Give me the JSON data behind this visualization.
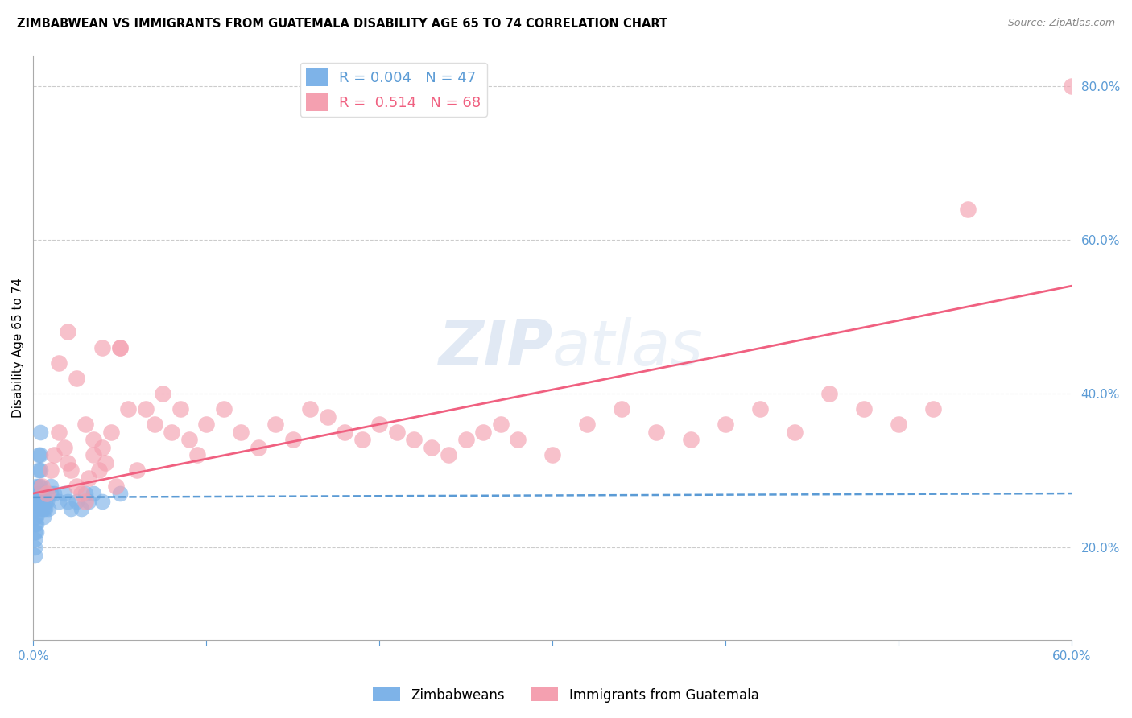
{
  "title": "ZIMBABWEAN VS IMMIGRANTS FROM GUATEMALA DISABILITY AGE 65 TO 74 CORRELATION CHART",
  "source": "Source: ZipAtlas.com",
  "ylabel": "Disability Age 65 to 74",
  "xlim": [
    0.0,
    0.6
  ],
  "ylim": [
    0.08,
    0.84
  ],
  "xticks": [
    0.0,
    0.1,
    0.2,
    0.3,
    0.4,
    0.5,
    0.6
  ],
  "xticklabels": [
    "0.0%",
    "",
    "",
    "",
    "",
    "",
    "60.0%"
  ],
  "yticks_right": [
    0.2,
    0.4,
    0.6,
    0.8
  ],
  "ytick_right_labels": [
    "20.0%",
    "40.0%",
    "60.0%",
    "80.0%"
  ],
  "blue_R": 0.004,
  "blue_N": 47,
  "pink_R": 0.514,
  "pink_N": 68,
  "legend_label_blue": "Zimbabweans",
  "legend_label_pink": "Immigrants from Guatemala",
  "blue_color": "#7EB3E8",
  "pink_color": "#F4A0B0",
  "blue_line_color": "#5B9BD5",
  "pink_line_color": "#F06080",
  "blue_x": [
    0.001,
    0.001,
    0.001,
    0.001,
    0.001,
    0.001,
    0.001,
    0.001,
    0.002,
    0.002,
    0.002,
    0.002,
    0.002,
    0.002,
    0.002,
    0.003,
    0.003,
    0.003,
    0.003,
    0.003,
    0.004,
    0.004,
    0.004,
    0.004,
    0.005,
    0.005,
    0.005,
    0.006,
    0.006,
    0.007,
    0.007,
    0.008,
    0.009,
    0.01,
    0.01,
    0.012,
    0.015,
    0.018,
    0.02,
    0.022,
    0.025,
    0.028,
    0.03,
    0.032,
    0.035,
    0.04,
    0.05
  ],
  "blue_y": [
    0.26,
    0.25,
    0.24,
    0.23,
    0.22,
    0.21,
    0.2,
    0.19,
    0.28,
    0.27,
    0.26,
    0.25,
    0.24,
    0.23,
    0.22,
    0.32,
    0.3,
    0.28,
    0.27,
    0.26,
    0.35,
    0.32,
    0.3,
    0.28,
    0.27,
    0.26,
    0.25,
    0.25,
    0.24,
    0.26,
    0.25,
    0.26,
    0.25,
    0.28,
    0.27,
    0.27,
    0.26,
    0.27,
    0.26,
    0.25,
    0.26,
    0.25,
    0.27,
    0.26,
    0.27,
    0.26,
    0.27
  ],
  "pink_x": [
    0.005,
    0.008,
    0.01,
    0.012,
    0.015,
    0.018,
    0.02,
    0.022,
    0.025,
    0.028,
    0.03,
    0.032,
    0.035,
    0.038,
    0.04,
    0.042,
    0.045,
    0.048,
    0.05,
    0.055,
    0.06,
    0.065,
    0.07,
    0.075,
    0.08,
    0.085,
    0.09,
    0.095,
    0.1,
    0.11,
    0.12,
    0.13,
    0.14,
    0.15,
    0.16,
    0.17,
    0.18,
    0.19,
    0.2,
    0.21,
    0.22,
    0.23,
    0.24,
    0.25,
    0.26,
    0.27,
    0.28,
    0.3,
    0.32,
    0.34,
    0.36,
    0.38,
    0.4,
    0.42,
    0.44,
    0.46,
    0.48,
    0.5,
    0.52,
    0.54,
    0.015,
    0.02,
    0.025,
    0.03,
    0.035,
    0.04,
    0.05,
    0.6
  ],
  "pink_y": [
    0.28,
    0.27,
    0.3,
    0.32,
    0.35,
    0.33,
    0.31,
    0.3,
    0.28,
    0.27,
    0.26,
    0.29,
    0.32,
    0.3,
    0.33,
    0.31,
    0.35,
    0.28,
    0.46,
    0.38,
    0.3,
    0.38,
    0.36,
    0.4,
    0.35,
    0.38,
    0.34,
    0.32,
    0.36,
    0.38,
    0.35,
    0.33,
    0.36,
    0.34,
    0.38,
    0.37,
    0.35,
    0.34,
    0.36,
    0.35,
    0.34,
    0.33,
    0.32,
    0.34,
    0.35,
    0.36,
    0.34,
    0.32,
    0.36,
    0.38,
    0.35,
    0.34,
    0.36,
    0.38,
    0.35,
    0.4,
    0.38,
    0.36,
    0.38,
    0.64,
    0.44,
    0.48,
    0.42,
    0.36,
    0.34,
    0.46,
    0.46,
    0.8
  ]
}
